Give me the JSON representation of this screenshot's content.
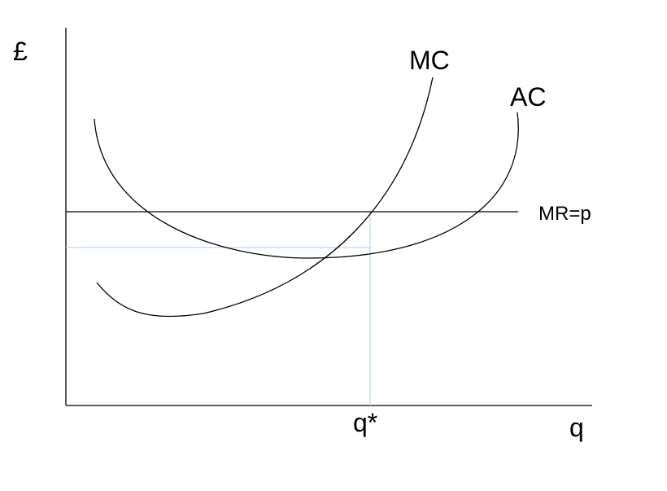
{
  "labels": {
    "y_axis": "£",
    "x_axis": "q",
    "mc_curve": "MC",
    "ac_curve": "AC",
    "mr_line": "MR=p",
    "q_star": "q*"
  },
  "colors": {
    "axis": "#000000",
    "curve": "#000000",
    "guide": "#a9cde8"
  }
}
